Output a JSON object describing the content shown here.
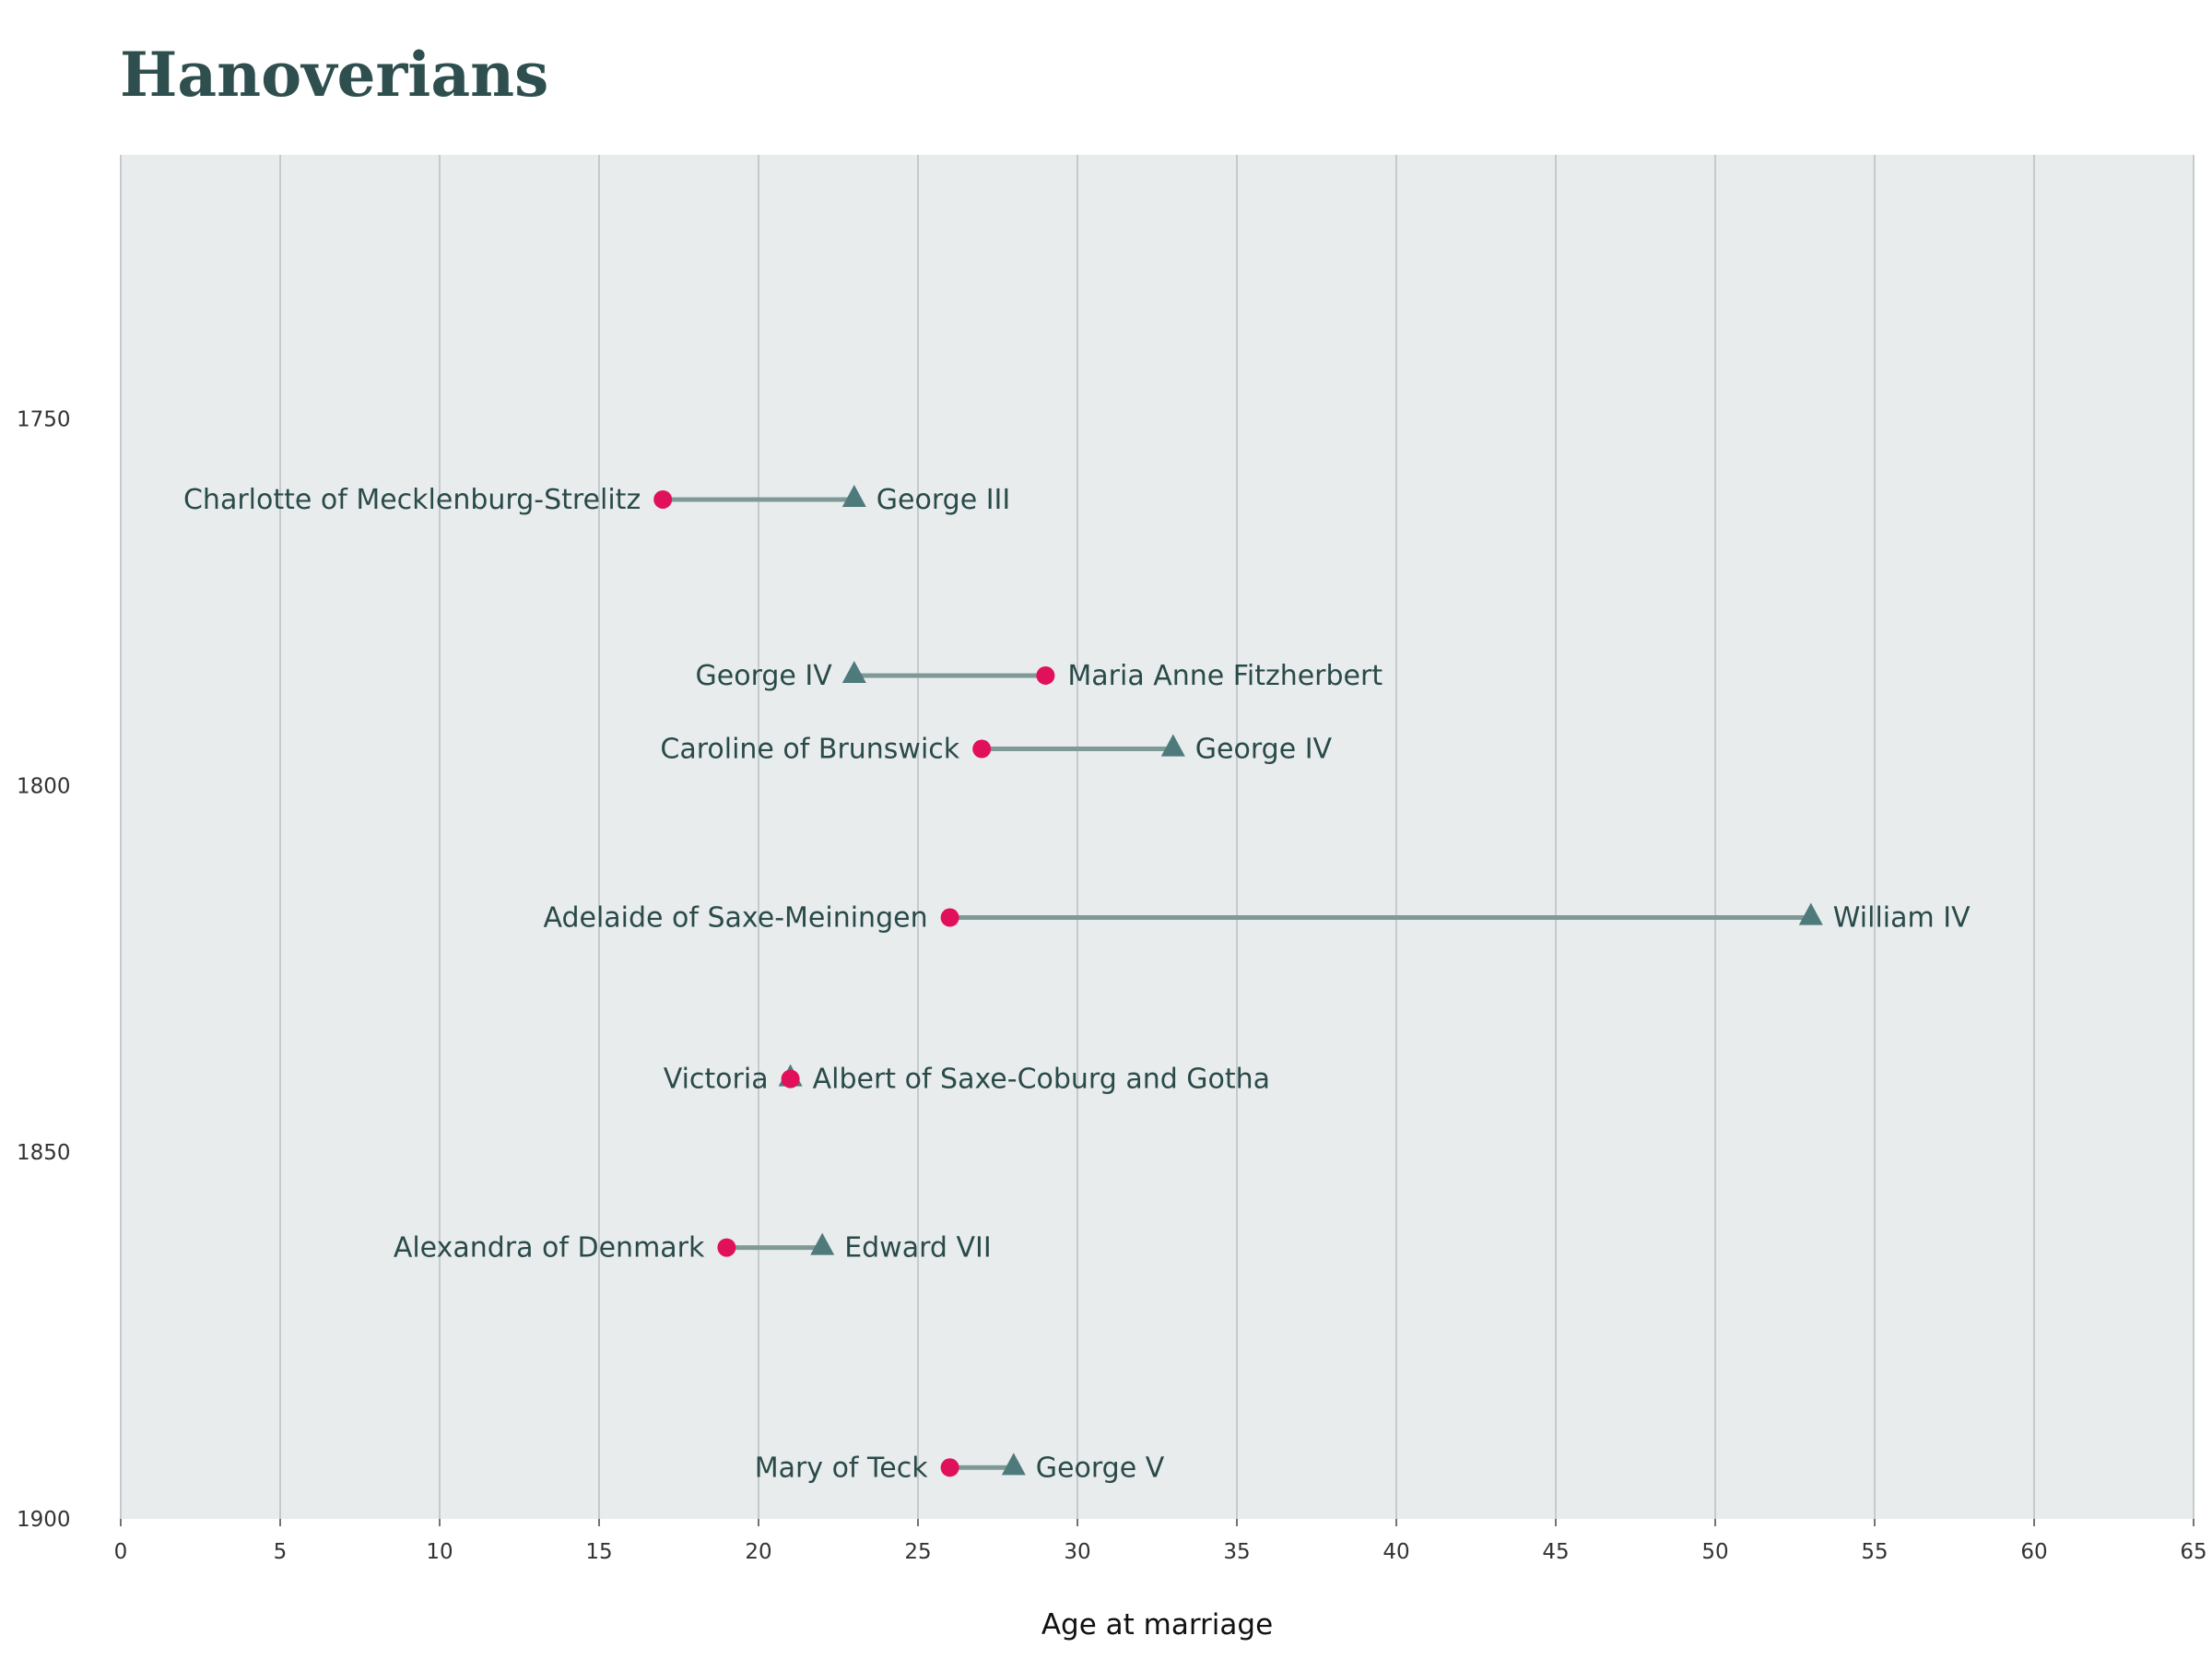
{
  "title": "Hanoverians",
  "colors": {
    "panel": "#e8eced",
    "grid": "#c5cacc",
    "segment": "#7f9a96",
    "wife": "#e0115a",
    "husband": "#4f7a7c",
    "text": "#2a4a4a"
  },
  "chart_data": {
    "type": "dumbbell",
    "title": "Hanoverians",
    "xlabel": "Age at marriage",
    "ylabel": "",
    "xlim": [
      0,
      65
    ],
    "ylim": [
      1714,
      1900
    ],
    "x_ticks": [
      "0",
      "5",
      "10",
      "15",
      "20",
      "25",
      "30",
      "35",
      "40",
      "45",
      "50",
      "55",
      "60",
      "65"
    ],
    "y_ticks": [
      "1750",
      "1800",
      "1850",
      "1900"
    ],
    "grid": "vertical",
    "series": [
      {
        "marker": "circle",
        "points": [
          {
            "name": "Charlotte of Mecklenburg-Strelitz",
            "year": 1761,
            "age": 17
          },
          {
            "name": "Maria Anne Fitzherbert",
            "year": 1785,
            "age": 29
          },
          {
            "name": "Caroline of Brunswick",
            "year": 1795,
            "age": 27
          },
          {
            "name": "Adelaide of Saxe-Meiningen",
            "year": 1818,
            "age": 26
          },
          {
            "name": "Victoria",
            "year": 1840,
            "age": 21
          },
          {
            "name": "Alexandra of Denmark",
            "year": 1863,
            "age": 19
          },
          {
            "name": "Mary of Teck",
            "year": 1893,
            "age": 26
          }
        ]
      },
      {
        "marker": "triangle",
        "points": [
          {
            "name": "George III",
            "year": 1761,
            "age": 23
          },
          {
            "name": "George IV",
            "year": 1785,
            "age": 23
          },
          {
            "name": "George IV",
            "year": 1795,
            "age": 33
          },
          {
            "name": "William IV",
            "year": 1818,
            "age": 53
          },
          {
            "name": "Albert of Saxe-Coburg and Gotha",
            "year": 1840,
            "age": 21
          },
          {
            "name": "Edward VII",
            "year": 1863,
            "age": 22
          },
          {
            "name": "George V",
            "year": 1893,
            "age": 28
          }
        ]
      }
    ]
  }
}
